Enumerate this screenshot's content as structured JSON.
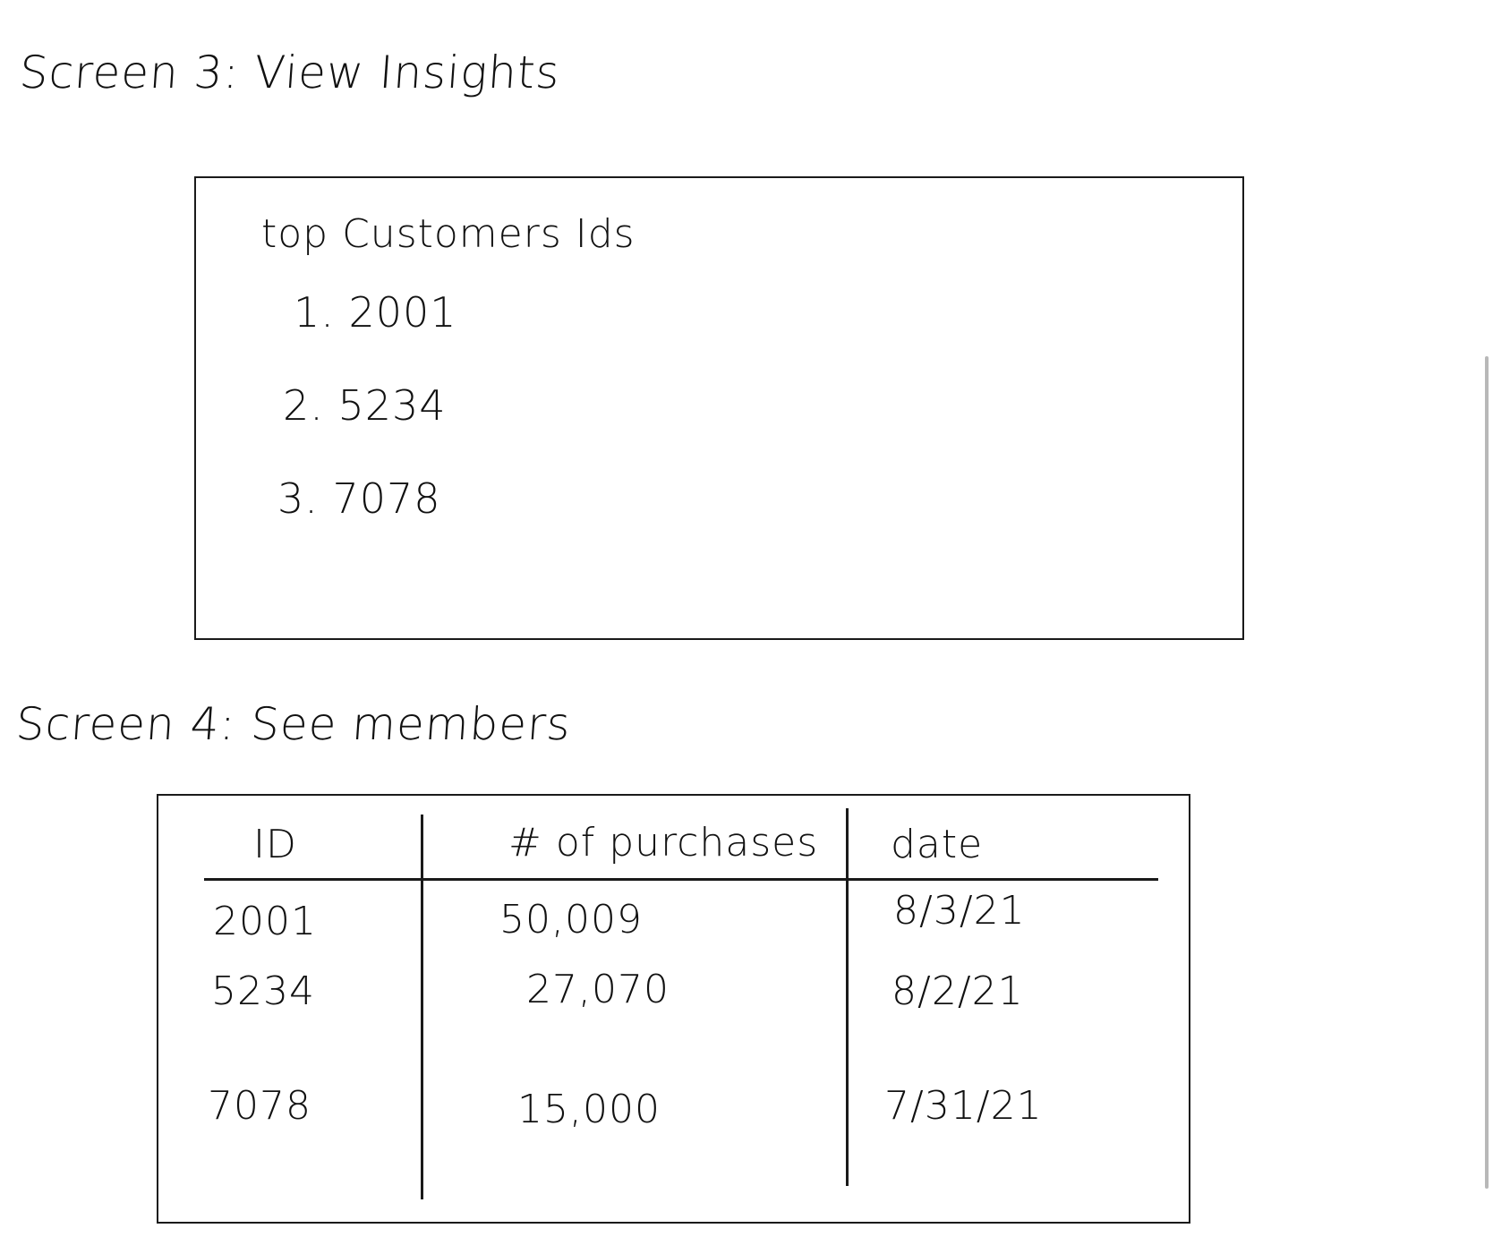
{
  "screen3": {
    "heading": "Screen 3: View Insights",
    "panel": {
      "title": "top Customers Ids",
      "items": [
        "1. 2001",
        "2. 5234",
        "3. 7078"
      ]
    }
  },
  "screen4": {
    "heading": "Screen 4: See members",
    "table": {
      "columns": [
        "ID",
        "# of purchases",
        "date"
      ],
      "rows": [
        {
          "id": "2001",
          "purchases": "50,009",
          "date": "8/3/21"
        },
        {
          "id": "5234",
          "purchases": "27,070",
          "date": "8/2/21"
        },
        {
          "id": "7078",
          "purchases": "15,000",
          "date": "7/31/21"
        }
      ]
    }
  }
}
